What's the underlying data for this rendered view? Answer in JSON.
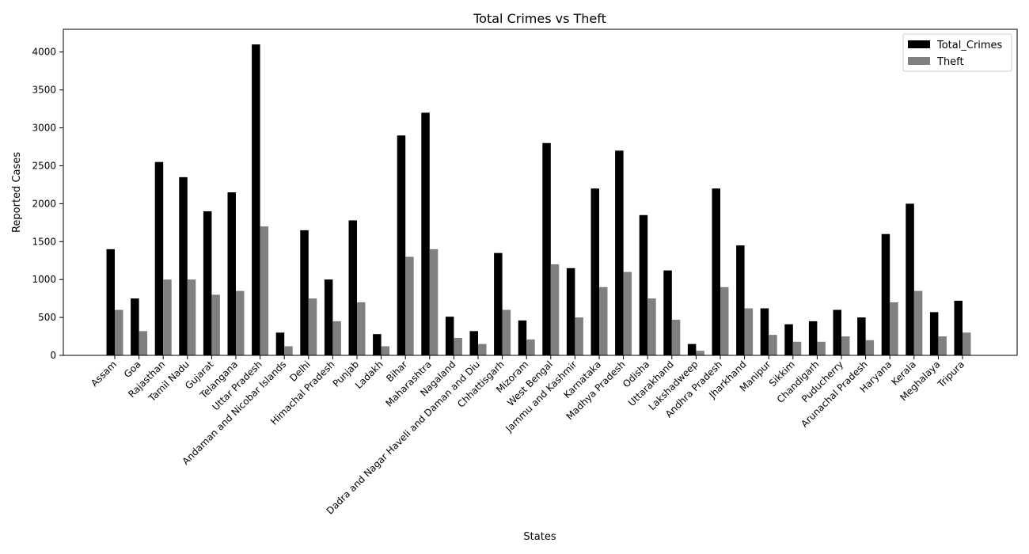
{
  "chart_data": {
    "type": "bar",
    "title": "Total Crimes vs Theft",
    "xlabel": "States",
    "ylabel": "Reported Cases",
    "ylim": [
      0,
      4300
    ],
    "yticks": [
      0,
      500,
      1000,
      1500,
      2000,
      2500,
      3000,
      3500,
      4000
    ],
    "grid": false,
    "legend_position": "top-right",
    "categories": [
      "Assam",
      "Goa",
      "Rajasthan",
      "Tamil Nadu",
      "Gujarat",
      "Telangana",
      "Uttar Pradesh",
      "Andaman and Nicobar Islands",
      "Delhi",
      "Himachal Pradesh",
      "Punjab",
      "Ladakh",
      "Bihar",
      "Maharashtra",
      "Nagaland",
      "Dadra and Nagar Haveli and Daman and Diu",
      "Chhattisgarh",
      "Mizoram",
      "West Bengal",
      "Jammu and Kashmir",
      "Karnataka",
      "Madhya Pradesh",
      "Odisha",
      "Uttarakhand",
      "Lakshadweep",
      "Andhra Pradesh",
      "Jharkhand",
      "Manipur",
      "Sikkim",
      "Chandigarh",
      "Puducherry",
      "Arunachal Pradesh",
      "Haryana",
      "Kerala",
      "Meghalaya",
      "Tripura"
    ],
    "series": [
      {
        "name": "Total_Crimes",
        "color": "#000000",
        "values": [
          1400,
          750,
          2550,
          2350,
          1900,
          2150,
          4100,
          300,
          1650,
          1000,
          1780,
          280,
          2900,
          3200,
          510,
          320,
          1350,
          460,
          2800,
          1150,
          2200,
          2700,
          1850,
          1120,
          150,
          2200,
          1450,
          620,
          410,
          450,
          600,
          500,
          1600,
          2000,
          570,
          720
        ]
      },
      {
        "name": "Theft",
        "color": "#808080",
        "values": [
          600,
          320,
          1000,
          1000,
          800,
          850,
          1700,
          120,
          750,
          450,
          700,
          120,
          1300,
          1400,
          230,
          150,
          600,
          210,
          1200,
          500,
          900,
          1100,
          750,
          470,
          60,
          900,
          620,
          270,
          180,
          180,
          250,
          200,
          700,
          850,
          250,
          300
        ]
      }
    ]
  }
}
